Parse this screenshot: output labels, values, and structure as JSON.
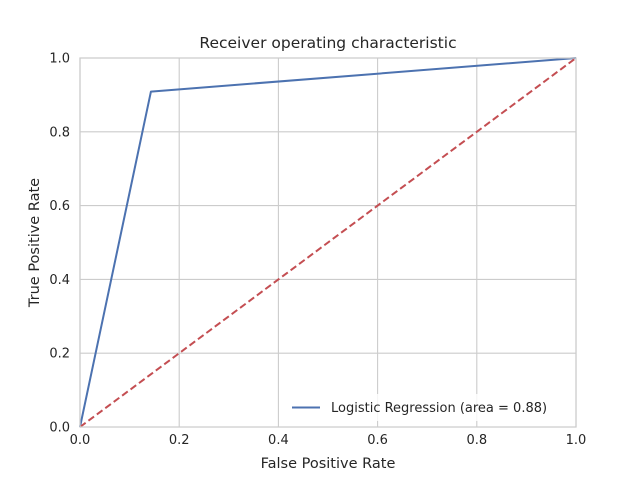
{
  "chart_data": {
    "type": "line",
    "title": "Receiver operating characteristic",
    "xlabel": "False Positive Rate",
    "ylabel": "True Positive Rate",
    "xlim": [
      0.0,
      1.0
    ],
    "ylim": [
      0.0,
      1.0
    ],
    "xticks": [
      "0.0",
      "0.2",
      "0.4",
      "0.6",
      "0.8",
      "1.0"
    ],
    "yticks": [
      "0.0",
      "0.2",
      "0.4",
      "0.6",
      "0.8",
      "1.0"
    ],
    "xtick_values": [
      0.0,
      0.2,
      0.4,
      0.6,
      0.8,
      1.0
    ],
    "ytick_values": [
      0.0,
      0.2,
      0.4,
      0.6,
      0.8,
      1.0
    ],
    "grid": true,
    "legend_position": "lower-right",
    "series": [
      {
        "name": "Logistic Regression (area = 0.88)",
        "x": [
          0.0,
          0.143,
          1.0
        ],
        "y": [
          0.0,
          0.909,
          1.0
        ],
        "color": "#4c72b0",
        "linestyle": "solid"
      },
      {
        "name": "",
        "x": [
          0.0,
          1.0
        ],
        "y": [
          0.0,
          1.0
        ],
        "color": "#c44e52",
        "linestyle": "dashed"
      }
    ]
  }
}
